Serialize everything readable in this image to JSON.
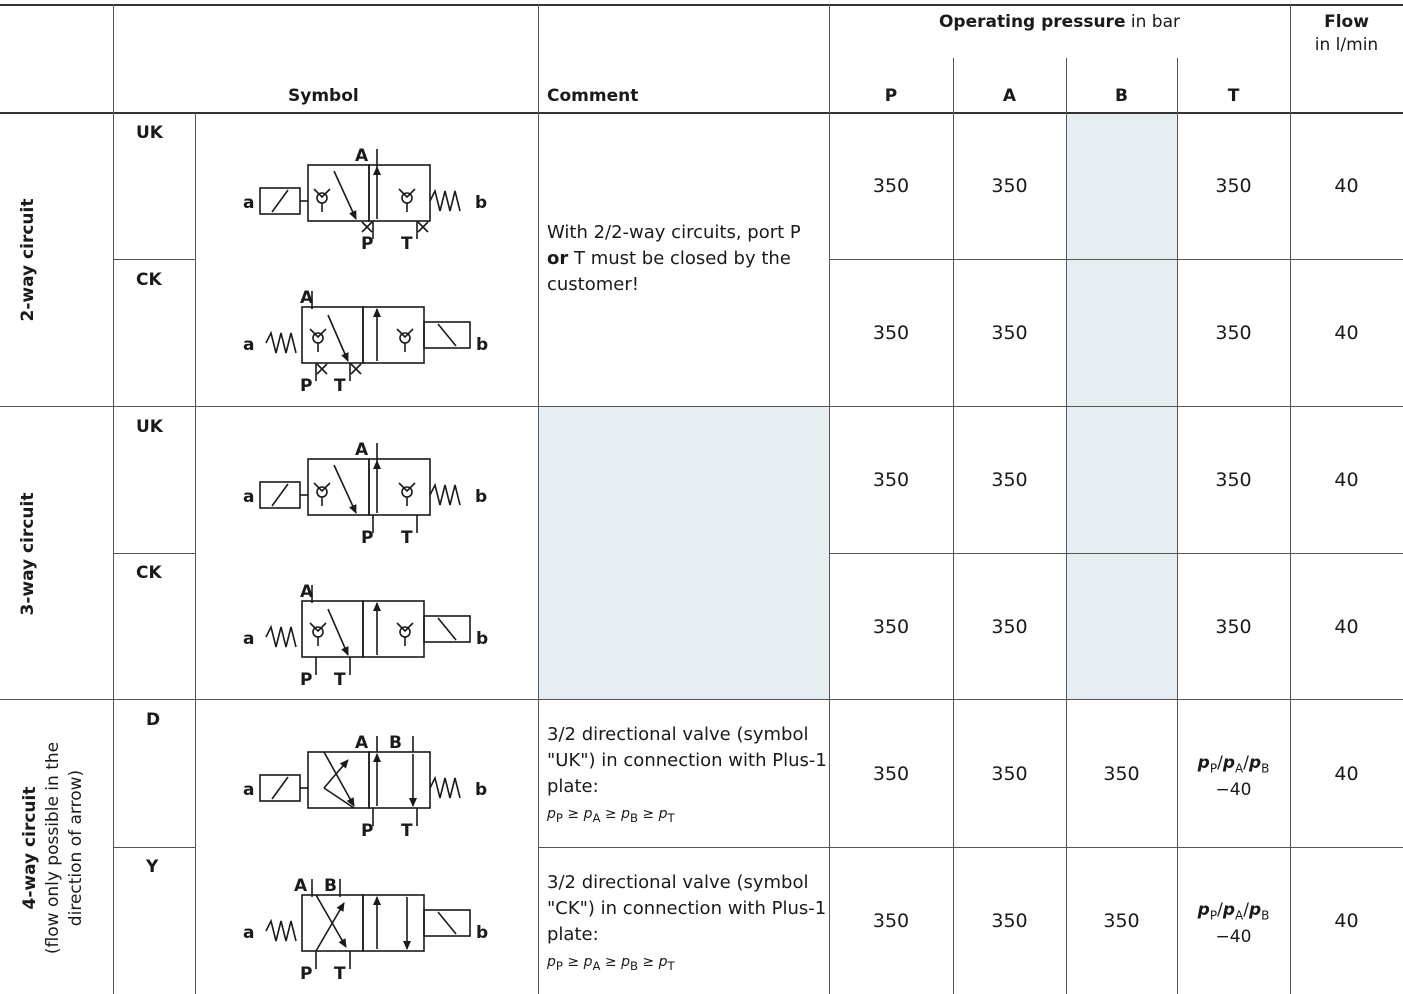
{
  "header": {
    "symbol": "Symbol",
    "comment": "Comment",
    "op_pressure_bold": "Operating pressure",
    "op_pressure_rest": " in bar",
    "flow_bold": "Flow",
    "flow_unit": "in l/min",
    "cols": [
      "P",
      "A",
      "B",
      "T"
    ]
  },
  "groups": {
    "two_way": "2-way circuit",
    "three_way": "3-way circuit",
    "four_way_bold": "4-way circuit",
    "four_way_line2": "(flow only possible in the",
    "four_way_line3": "direction of arrow)"
  },
  "rows": [
    {
      "code": "UK",
      "p": "350",
      "a": "350",
      "b": "",
      "t": "350",
      "flow": "40"
    },
    {
      "code": "CK",
      "p": "350",
      "a": "350",
      "b": "",
      "t": "350",
      "flow": "40"
    },
    {
      "code": "UK",
      "p": "350",
      "a": "350",
      "b": "",
      "t": "350",
      "flow": "40"
    },
    {
      "code": "CK",
      "p": "350",
      "a": "350",
      "b": "",
      "t": "350",
      "flow": "40"
    },
    {
      "code": "D",
      "p": "350",
      "a": "350",
      "b": "350",
      "t_line1": "pP/pA/pB",
      "t_line2": "−40",
      "flow": "40"
    },
    {
      "code": "Y",
      "p": "350",
      "a": "350",
      "b": "350",
      "t_line1": "pP/pA/pB",
      "t_line2": "−40",
      "flow": "40"
    }
  ],
  "comments": {
    "two_way_pre": "With 2/2-way circuits, port P",
    "two_way_bold": "or",
    "two_way_post": " T must be closed by the customer!",
    "d_text": "3/2 directional valve (symbol \"UK\") in connection with Plus-1 plate:",
    "y_text": "3/2 directional valve (symbol \"CK\") in connection with Plus-1 plate:",
    "formula": "pP ≥ pA ≥ pB ≥ pT"
  },
  "symbol_labels": {
    "a": "a",
    "b": "b",
    "A": "A",
    "B": "B",
    "P": "P",
    "T": "T"
  },
  "colors": {
    "shade": "#e6eef2",
    "line": "#555555",
    "text": "#1a1a1a"
  }
}
